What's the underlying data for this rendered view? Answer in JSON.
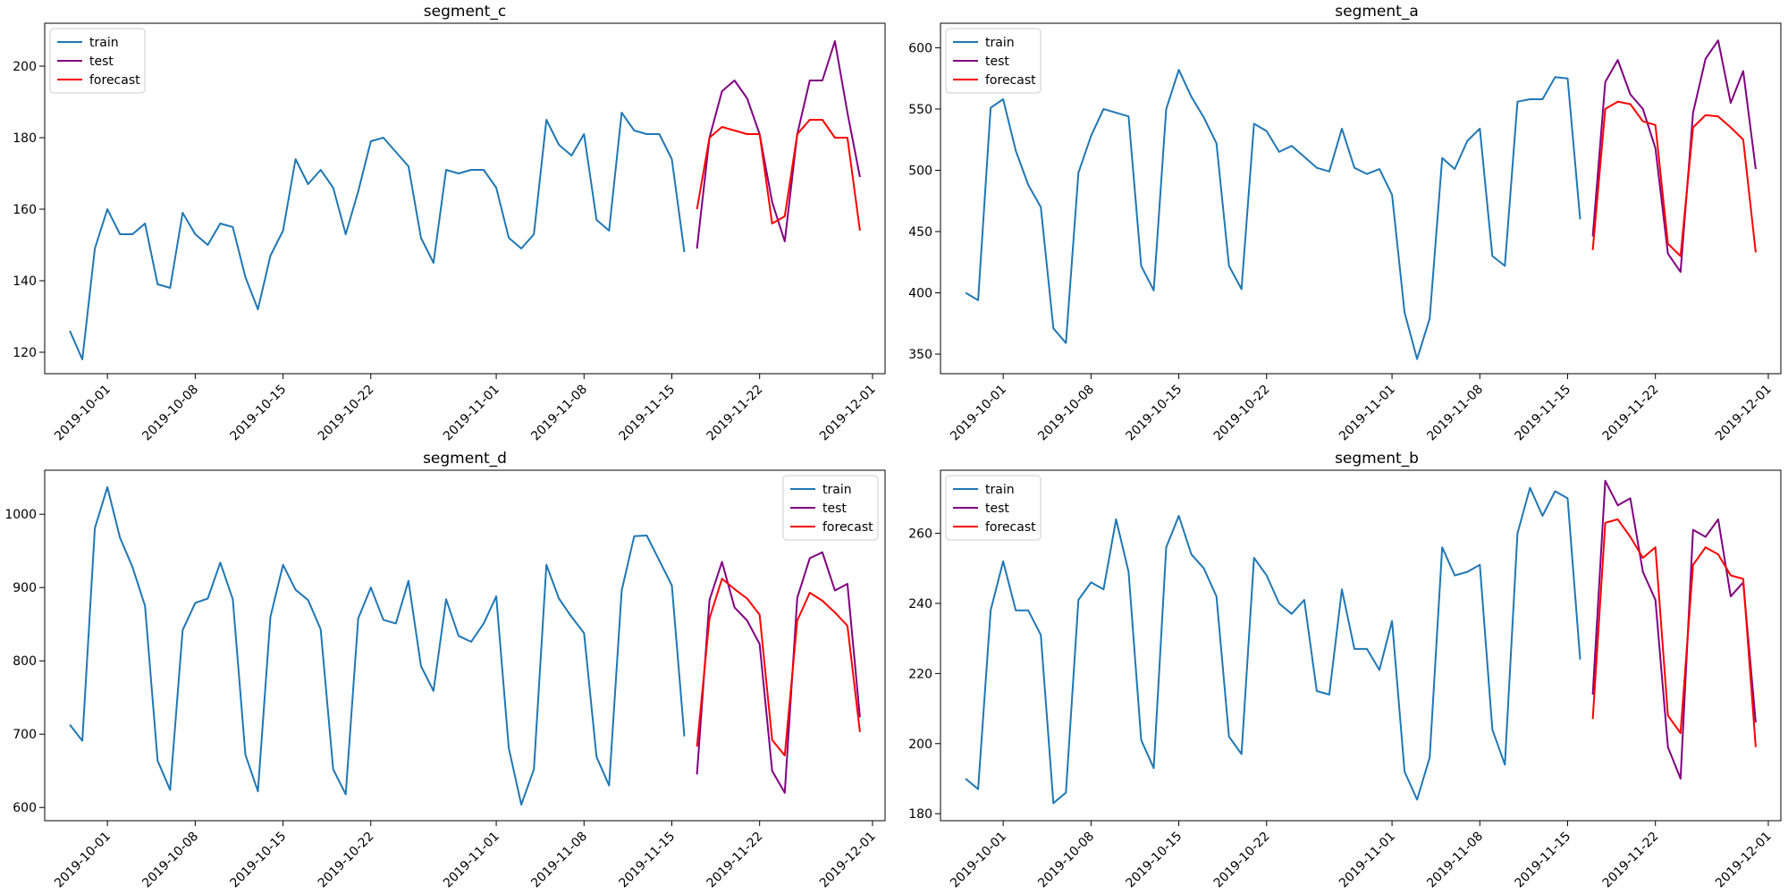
{
  "figure": {
    "series_names": [
      "train",
      "test",
      "forecast"
    ],
    "colors": {
      "train": "#1f77b4",
      "test": "#800080",
      "forecast": "#ff0000"
    }
  },
  "chart_data": [
    {
      "type": "line",
      "title": "segment_c",
      "xlabel": "",
      "ylabel": "",
      "xlim": [
        "2019-09-26",
        "2019-12-02"
      ],
      "ylim": [
        114,
        212
      ],
      "x_ticks": [
        "2019-10-01",
        "2019-10-08",
        "2019-10-15",
        "2019-10-22",
        "2019-11-01",
        "2019-11-08",
        "2019-11-15",
        "2019-11-22",
        "2019-12-01"
      ],
      "y_ticks": [
        120,
        140,
        160,
        180,
        200
      ],
      "legend": "top-left",
      "series": [
        {
          "name": "train",
          "color": "#1f77b4",
          "start": "2019-09-28",
          "values": [
            126,
            118,
            149,
            160,
            153,
            153,
            156,
            139,
            138,
            159,
            153,
            150,
            156,
            155,
            141,
            132,
            147,
            154,
            174,
            167,
            171,
            166,
            153,
            165,
            179,
            180,
            176,
            172,
            152,
            145,
            171,
            170,
            171,
            171,
            166,
            152,
            149,
            153,
            185,
            178,
            175,
            181,
            157,
            154,
            187,
            182,
            181,
            181,
            174,
            148
          ]
        },
        {
          "name": "test",
          "color": "#800080",
          "start": "2019-11-17",
          "values": [
            149,
            180,
            193,
            196,
            191,
            181,
            162,
            151,
            181,
            196,
            196,
            207,
            187,
            169
          ]
        },
        {
          "name": "forecast",
          "color": "#ff0000",
          "start": "2019-11-17",
          "values": [
            160,
            180,
            183,
            182,
            181,
            181,
            156,
            158,
            181,
            185,
            185,
            180,
            180,
            154
          ]
        }
      ]
    },
    {
      "type": "line",
      "title": "segment_a",
      "xlabel": "",
      "ylabel": "",
      "xlim": [
        "2019-09-26",
        "2019-12-02"
      ],
      "ylim": [
        334,
        620
      ],
      "x_ticks": [
        "2019-10-01",
        "2019-10-08",
        "2019-10-15",
        "2019-10-22",
        "2019-11-01",
        "2019-11-08",
        "2019-11-15",
        "2019-11-22",
        "2019-12-01"
      ],
      "y_ticks": [
        350,
        400,
        450,
        500,
        550,
        600
      ],
      "legend": "top-left",
      "series": [
        {
          "name": "train",
          "color": "#1f77b4",
          "start": "2019-09-28",
          "values": [
            400,
            394,
            551,
            558,
            516,
            488,
            470,
            371,
            359,
            498,
            528,
            550,
            547,
            544,
            422,
            402,
            550,
            582,
            560,
            543,
            522,
            422,
            403,
            538,
            532,
            515,
            520,
            511,
            502,
            499,
            534,
            502,
            497,
            501,
            480,
            384,
            346,
            379,
            510,
            501,
            524,
            534,
            430,
            422,
            556,
            558,
            558,
            576,
            575,
            460
          ]
        },
        {
          "name": "test",
          "color": "#800080",
          "start": "2019-11-17",
          "values": [
            446,
            572,
            590,
            562,
            550,
            518,
            432,
            417,
            547,
            591,
            606,
            555,
            581,
            501
          ]
        },
        {
          "name": "forecast",
          "color": "#ff0000",
          "start": "2019-11-17",
          "values": [
            435,
            550,
            556,
            554,
            540,
            537,
            440,
            430,
            535,
            545,
            544,
            535,
            525,
            433
          ]
        }
      ]
    },
    {
      "type": "line",
      "title": "segment_d",
      "xlabel": "",
      "ylabel": "",
      "xlim": [
        "2019-09-26",
        "2019-12-02"
      ],
      "ylim": [
        582,
        1060
      ],
      "x_ticks": [
        "2019-10-01",
        "2019-10-08",
        "2019-10-15",
        "2019-10-22",
        "2019-11-01",
        "2019-11-08",
        "2019-11-15",
        "2019-11-22",
        "2019-12-01"
      ],
      "y_ticks": [
        600,
        700,
        800,
        900,
        1000
      ],
      "legend": "top-right",
      "series": [
        {
          "name": "train",
          "color": "#1f77b4",
          "start": "2019-09-28",
          "values": [
            713,
            691,
            981,
            1037,
            968,
            928,
            875,
            664,
            624,
            842,
            879,
            885,
            934,
            884,
            672,
            622,
            860,
            931,
            897,
            883,
            843,
            652,
            618,
            858,
            900,
            856,
            851,
            909,
            793,
            759,
            884,
            834,
            826,
            851,
            888,
            681,
            604,
            652,
            931,
            885,
            860,
            838,
            669,
            630,
            896,
            970,
            971,
            937,
            903,
            697
          ]
        },
        {
          "name": "test",
          "color": "#800080",
          "start": "2019-11-17",
          "values": [
            645,
            883,
            935,
            873,
            855,
            823,
            650,
            620,
            886,
            940,
            948,
            896,
            905,
            723
          ]
        },
        {
          "name": "forecast",
          "color": "#ff0000",
          "start": "2019-11-17",
          "values": [
            683,
            858,
            912,
            898,
            885,
            863,
            692,
            671,
            855,
            893,
            882,
            866,
            848,
            703
          ]
        }
      ]
    },
    {
      "type": "line",
      "title": "segment_b",
      "xlabel": "",
      "ylabel": "",
      "xlim": [
        "2019-09-26",
        "2019-12-02"
      ],
      "ylim": [
        178,
        278
      ],
      "x_ticks": [
        "2019-10-01",
        "2019-10-08",
        "2019-10-15",
        "2019-10-22",
        "2019-11-01",
        "2019-11-08",
        "2019-11-15",
        "2019-11-22",
        "2019-12-01"
      ],
      "y_ticks": [
        180,
        200,
        220,
        240,
        260
      ],
      "legend": "top-left",
      "series": [
        {
          "name": "train",
          "color": "#1f77b4",
          "start": "2019-09-28",
          "values": [
            190,
            187,
            238,
            252,
            238,
            238,
            231,
            183,
            186,
            241,
            246,
            244,
            264,
            249,
            201,
            193,
            256,
            265,
            254,
            250,
            242,
            202,
            197,
            253,
            248,
            240,
            237,
            241,
            215,
            214,
            244,
            227,
            227,
            221,
            235,
            192,
            184,
            196,
            256,
            248,
            249,
            251,
            204,
            194,
            260,
            273,
            265,
            272,
            270,
            224
          ]
        },
        {
          "name": "test",
          "color": "#800080",
          "start": "2019-11-17",
          "values": [
            214,
            275,
            268,
            270,
            249,
            241,
            199,
            190,
            261,
            259,
            264,
            242,
            246,
            206
          ]
        },
        {
          "name": "forecast",
          "color": "#ff0000",
          "start": "2019-11-17",
          "values": [
            207,
            263,
            264,
            259,
            253,
            256,
            208,
            203,
            251,
            256,
            254,
            248,
            247,
            199
          ]
        }
      ]
    }
  ]
}
